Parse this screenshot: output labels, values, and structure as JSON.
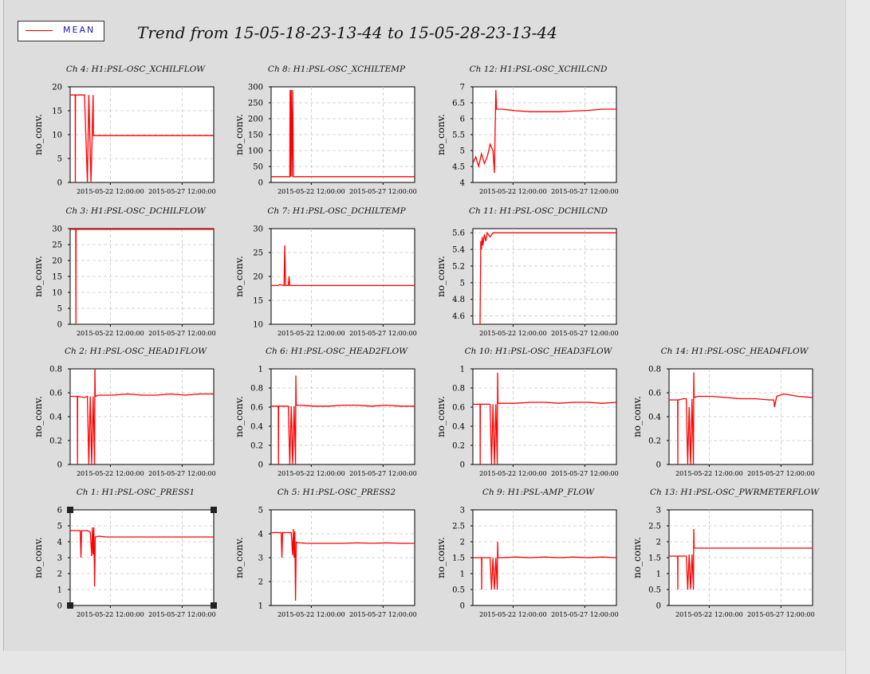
{
  "title": "Trend from 15-05-18-23-13-44 to 15-05-28-23-13-44",
  "legend": {
    "label": "MEAN"
  },
  "colors": {
    "series": "#ff0000",
    "background": "#dddddd",
    "plot_bg": "#ffffff"
  },
  "chart_data": [
    {
      "type": "line",
      "title": "Ch 4: H1:PSL-OSC_XCHILFLOW",
      "ylabel": "no_conv.",
      "yticks": [
        "0",
        "5",
        "10",
        "15",
        "20"
      ],
      "ylim": [
        0,
        20
      ],
      "xticks": [
        "2015-05-22 12:00:00",
        "2015-05-27 12:00:00"
      ],
      "x": [
        0,
        0.35,
        0.36,
        0.37,
        0.62,
        0.64,
        1.0,
        1.2,
        1.3,
        1.45,
        1.6,
        1.62,
        10
      ],
      "values": [
        18.3,
        18.3,
        0,
        18.3,
        18.3,
        18.3,
        18.3,
        0,
        18.3,
        0,
        18.3,
        9.8,
        9.8
      ]
    },
    {
      "type": "line",
      "title": "Ch 8: H1:PSL-OSC_XCHILTEMP",
      "ylabel": "no_conv.",
      "yticks": [
        "0",
        "50",
        "100",
        "150",
        "200",
        "250",
        "300"
      ],
      "ylim": [
        0,
        300
      ],
      "xticks": [
        "2015-05-22 12:00:00",
        "2015-05-27 12:00:00"
      ],
      "x": [
        0,
        1.3,
        1.32,
        1.35,
        1.4,
        1.45,
        1.5,
        1.55,
        1.6,
        10
      ],
      "values": [
        18,
        18,
        290,
        18,
        290,
        18,
        290,
        18,
        18,
        18
      ]
    },
    {
      "type": "line",
      "title": "Ch 12: H1:PSL-OSC_XCHILCND",
      "ylabel": "no_conv.",
      "yticks": [
        "4",
        "4.5",
        "5",
        "5.5",
        "6",
        "6.5",
        "7"
      ],
      "ylim": [
        4,
        7
      ],
      "xticks": [
        "2015-05-22 12:00:00",
        "2015-05-27 12:00:00"
      ],
      "x": [
        0,
        0.2,
        0.4,
        0.6,
        0.8,
        1.0,
        1.2,
        1.4,
        1.5,
        1.6,
        1.65,
        1.7,
        2.0,
        3,
        4,
        5,
        6,
        7,
        8,
        9,
        10
      ],
      "values": [
        4.6,
        4.8,
        4.5,
        4.9,
        4.6,
        4.8,
        5.2,
        5.0,
        4.3,
        6.9,
        6.3,
        6.3,
        6.3,
        6.25,
        6.22,
        6.22,
        6.22,
        6.24,
        6.26,
        6.3,
        6.3
      ]
    },
    {
      "type": "line",
      "title": "Ch 3: H1:PSL-OSC_DCHILFLOW",
      "ylabel": "no_conv.",
      "yticks": [
        "0",
        "5",
        "10",
        "15",
        "20",
        "25",
        "30"
      ],
      "ylim": [
        0,
        30
      ],
      "xticks": [
        "2015-05-22 12:00:00",
        "2015-05-27 12:00:00"
      ],
      "x": [
        0,
        0.39,
        0.4,
        0.41,
        10
      ],
      "values": [
        29.8,
        29.8,
        0,
        29.8,
        29.8
      ]
    },
    {
      "type": "line",
      "title": "Ch 7: H1:PSL-OSC_DCHILTEMP",
      "ylabel": "no_conv.",
      "yticks": [
        "10",
        "15",
        "20",
        "25",
        "30"
      ],
      "ylim": [
        10,
        30
      ],
      "xticks": [
        "2015-05-22 12:00:00",
        "2015-05-27 12:00:00"
      ],
      "x": [
        0,
        0.5,
        0.6,
        0.9,
        0.95,
        1.0,
        1.2,
        1.25,
        1.3,
        10
      ],
      "values": [
        18.1,
        18.1,
        18.3,
        18.1,
        26.5,
        18.1,
        18.1,
        20.0,
        18.1,
        18.1
      ]
    },
    {
      "type": "line",
      "title": "Ch 11: H1:PSL-OSC_DCHILCND",
      "ylabel": "no_conv.",
      "yticks": [
        "4.6",
        "4.8",
        "5",
        "5.2",
        "5.4",
        "5.6"
      ],
      "ylim": [
        4.5,
        5.65
      ],
      "xticks": [
        "2015-05-22 12:00:00",
        "2015-05-27 12:00:00"
      ],
      "x": [
        0,
        0.5,
        0.55,
        0.6,
        0.65,
        0.7,
        0.8,
        0.9,
        1.0,
        1.2,
        1.4,
        10
      ],
      "values": [
        4.5,
        4.5,
        5.5,
        5.4,
        5.55,
        5.45,
        5.58,
        5.5,
        5.6,
        5.55,
        5.6,
        5.6
      ]
    },
    {
      "type": "line",
      "title": "Ch 2: H1:PSL-OSC_HEAD1FLOW",
      "ylabel": "no_conv.",
      "yticks": [
        "0",
        "0.2",
        "0.4",
        "0.6",
        "0.8"
      ],
      "ylim": [
        0,
        0.8
      ],
      "xticks": [
        "2015-05-22 12:00:00",
        "2015-05-27 12:00:00"
      ],
      "x": [
        0,
        0.5,
        0.51,
        0.52,
        1.0,
        1.2,
        1.3,
        1.4,
        1.5,
        1.6,
        1.7,
        1.72,
        1.75,
        2,
        3,
        4,
        5,
        6,
        7,
        8,
        9,
        10
      ],
      "values": [
        0.57,
        0.57,
        0,
        0.57,
        0.56,
        0.57,
        0,
        0.57,
        0,
        0.57,
        0,
        0.83,
        0.57,
        0.58,
        0.58,
        0.59,
        0.58,
        0.58,
        0.59,
        0.58,
        0.59,
        0.59
      ]
    },
    {
      "type": "line",
      "title": "Ch 6: H1:PSL-OSC_HEAD2FLOW",
      "ylabel": "no_conv.",
      "yticks": [
        "0",
        "0.2",
        "0.4",
        "0.6",
        "0.8",
        "1"
      ],
      "ylim": [
        0,
        1
      ],
      "xticks": [
        "2015-05-22 12:00:00",
        "2015-05-27 12:00:00"
      ],
      "x": [
        0,
        0.5,
        0.51,
        0.52,
        1.0,
        1.2,
        1.3,
        1.4,
        1.5,
        1.6,
        1.7,
        1.72,
        1.75,
        2,
        3,
        4,
        5,
        6,
        7,
        8,
        9,
        10
      ],
      "values": [
        0.61,
        0.61,
        0,
        0.61,
        0.61,
        0.61,
        0,
        0.61,
        0,
        0.61,
        0,
        0.93,
        0.62,
        0.62,
        0.61,
        0.61,
        0.62,
        0.62,
        0.61,
        0.62,
        0.61,
        0.61
      ]
    },
    {
      "type": "line",
      "title": "Ch 10: H1:PSL-OSC_HEAD3FLOW",
      "ylabel": "no_conv.",
      "yticks": [
        "0",
        "0.2",
        "0.4",
        "0.6",
        "0.8",
        "1"
      ],
      "ylim": [
        0,
        1
      ],
      "xticks": [
        "2015-05-22 12:00:00",
        "2015-05-27 12:00:00"
      ],
      "x": [
        0,
        0.5,
        0.51,
        0.52,
        1.0,
        1.2,
        1.3,
        1.4,
        1.5,
        1.6,
        1.7,
        1.72,
        1.75,
        2,
        3,
        4,
        5,
        6,
        7,
        8,
        9,
        10
      ],
      "values": [
        0.63,
        0.63,
        0,
        0.63,
        0.63,
        0.63,
        0,
        0.63,
        0,
        0.63,
        0,
        0.96,
        0.64,
        0.64,
        0.64,
        0.65,
        0.65,
        0.64,
        0.65,
        0.65,
        0.64,
        0.65
      ]
    },
    {
      "type": "line",
      "title": "Ch 14: H1:PSL-OSC_HEAD4FLOW",
      "ylabel": "no_conv.",
      "yticks": [
        "0",
        "0.2",
        "0.4",
        "0.6",
        "0.8"
      ],
      "ylim": [
        0,
        0.8
      ],
      "xticks": [
        "2015-05-22 12:00:00",
        "2015-05-27 12:00:00"
      ],
      "x": [
        0,
        0.6,
        0.61,
        0.62,
        1.0,
        1.2,
        1.3,
        1.4,
        1.5,
        1.6,
        1.7,
        1.72,
        1.75,
        2,
        3,
        4,
        5,
        6,
        7,
        7.3,
        7.35,
        7.5,
        8,
        9,
        10
      ],
      "values": [
        0.54,
        0.54,
        0,
        0.54,
        0.55,
        0.55,
        0,
        0.48,
        0,
        0.55,
        0,
        0.77,
        0.56,
        0.57,
        0.57,
        0.56,
        0.55,
        0.55,
        0.54,
        0.54,
        0.48,
        0.57,
        0.59,
        0.57,
        0.56
      ]
    },
    {
      "type": "line",
      "title": "Ch 1: H1:PSL-OSC_PRESS1",
      "ylabel": "no_conv.",
      "yticks": [
        "0",
        "1",
        "2",
        "3",
        "4",
        "5",
        "6"
      ],
      "ylim": [
        0,
        6
      ],
      "xticks": [
        "2015-05-22 12:00:00",
        "2015-05-27 12:00:00"
      ],
      "x": [
        0,
        0.7,
        0.75,
        0.8,
        1.2,
        1.4,
        1.5,
        1.55,
        1.6,
        1.65,
        1.7,
        1.75,
        2,
        2.5,
        3,
        4,
        5,
        6,
        7,
        8,
        9,
        10
      ],
      "values": [
        4.7,
        4.7,
        3.0,
        4.7,
        4.7,
        4.6,
        3.1,
        4.9,
        3.2,
        4.9,
        1.2,
        4.3,
        4.35,
        4.3,
        4.3,
        4.3,
        4.3,
        4.3,
        4.3,
        4.3,
        4.3,
        4.3
      ]
    },
    {
      "type": "line",
      "title": "Ch 5: H1:PSL-OSC_PRESS2",
      "ylabel": "no_conv.",
      "yticks": [
        "1",
        "2",
        "3",
        "4",
        "5"
      ],
      "ylim": [
        1,
        5
      ],
      "xticks": [
        "2015-05-22 12:00:00",
        "2015-05-27 12:00:00"
      ],
      "x": [
        0,
        0.7,
        0.75,
        0.8,
        1.2,
        1.4,
        1.5,
        1.55,
        1.6,
        1.65,
        1.7,
        1.75,
        2,
        2.5,
        3,
        4,
        5,
        6,
        7,
        8,
        9,
        10
      ],
      "values": [
        4.05,
        4.05,
        3.0,
        4.05,
        4.05,
        4.05,
        3.1,
        4.2,
        3.0,
        4.1,
        1.2,
        3.65,
        3.62,
        3.6,
        3.6,
        3.6,
        3.6,
        3.62,
        3.6,
        3.62,
        3.6,
        3.6
      ]
    },
    {
      "type": "line",
      "title": "Ch 9: H1:PSL-AMP_FLOW",
      "ylabel": "no_conv.",
      "yticks": [
        "0",
        "0.5",
        "1",
        "1.5",
        "2",
        "2.5",
        "3"
      ],
      "ylim": [
        0,
        3
      ],
      "xticks": [
        "2015-05-22 12:00:00",
        "2015-05-27 12:00:00"
      ],
      "x": [
        0,
        0.6,
        0.61,
        0.62,
        1.0,
        1.2,
        1.3,
        1.4,
        1.5,
        1.6,
        1.7,
        1.72,
        1.75,
        2,
        3,
        4,
        5,
        6,
        7,
        8,
        9,
        10
      ],
      "values": [
        1.5,
        1.5,
        0.5,
        1.5,
        1.5,
        1.5,
        0.5,
        1.5,
        0.5,
        1.5,
        0.5,
        2.0,
        1.5,
        1.5,
        1.52,
        1.5,
        1.52,
        1.5,
        1.52,
        1.5,
        1.52,
        1.5
      ]
    },
    {
      "type": "line",
      "title": "Ch 13: H1:PSL-OSC_PWRMETERFLOW",
      "ylabel": "no_conv.",
      "yticks": [
        "0",
        "0.5",
        "1",
        "1.5",
        "2",
        "2.5",
        "3"
      ],
      "ylim": [
        0,
        3
      ],
      "xticks": [
        "2015-05-22 12:00:00",
        "2015-05-27 12:00:00"
      ],
      "x": [
        0,
        0.6,
        0.61,
        0.62,
        1.0,
        1.2,
        1.3,
        1.4,
        1.5,
        1.6,
        1.7,
        1.72,
        1.75,
        2,
        3,
        4,
        5,
        6,
        7,
        8,
        9,
        10
      ],
      "values": [
        1.55,
        1.55,
        0.5,
        1.55,
        1.55,
        1.55,
        0.5,
        1.6,
        0.5,
        1.6,
        0.5,
        2.4,
        1.8,
        1.8,
        1.8,
        1.8,
        1.8,
        1.8,
        1.8,
        1.8,
        1.8,
        1.8
      ]
    }
  ]
}
